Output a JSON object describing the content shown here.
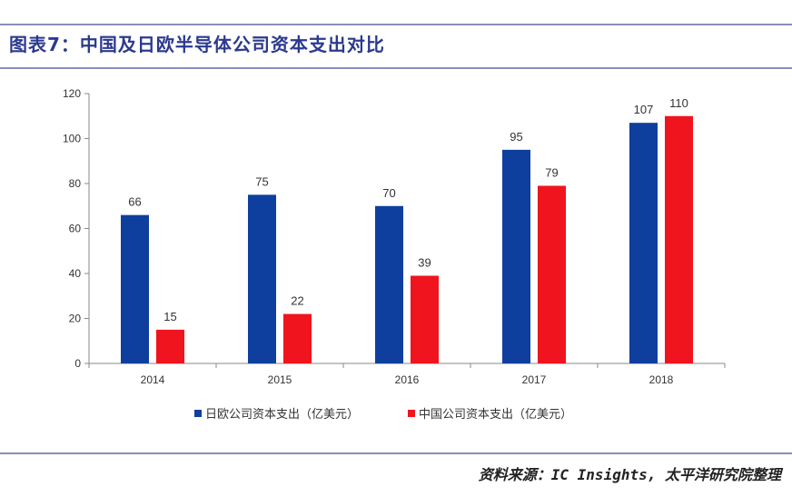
{
  "header": {
    "title": "图表7：中国及日欧半导体公司资本支出对比"
  },
  "footer": {
    "source": "资料来源：IC Insights, 太平洋研究院整理"
  },
  "chart_data": {
    "type": "bar",
    "title": "图表7：中国及日欧半导体公司资本支出对比",
    "xlabel": "",
    "ylabel": "",
    "categories": [
      "2014",
      "2015",
      "2016",
      "2017",
      "2018"
    ],
    "ylim": [
      0,
      120
    ],
    "yticks": [
      0,
      20,
      40,
      60,
      80,
      100,
      120
    ],
    "grid": false,
    "legend_position": "bottom",
    "series": [
      {
        "name": "日欧公司资本支出（亿美元）",
        "color": "#0f3f9e",
        "values": [
          66,
          75,
          70,
          95,
          107
        ]
      },
      {
        "name": "中国公司资本支出（亿美元）",
        "color": "#f0141e",
        "values": [
          15,
          22,
          39,
          79,
          110
        ]
      }
    ]
  }
}
